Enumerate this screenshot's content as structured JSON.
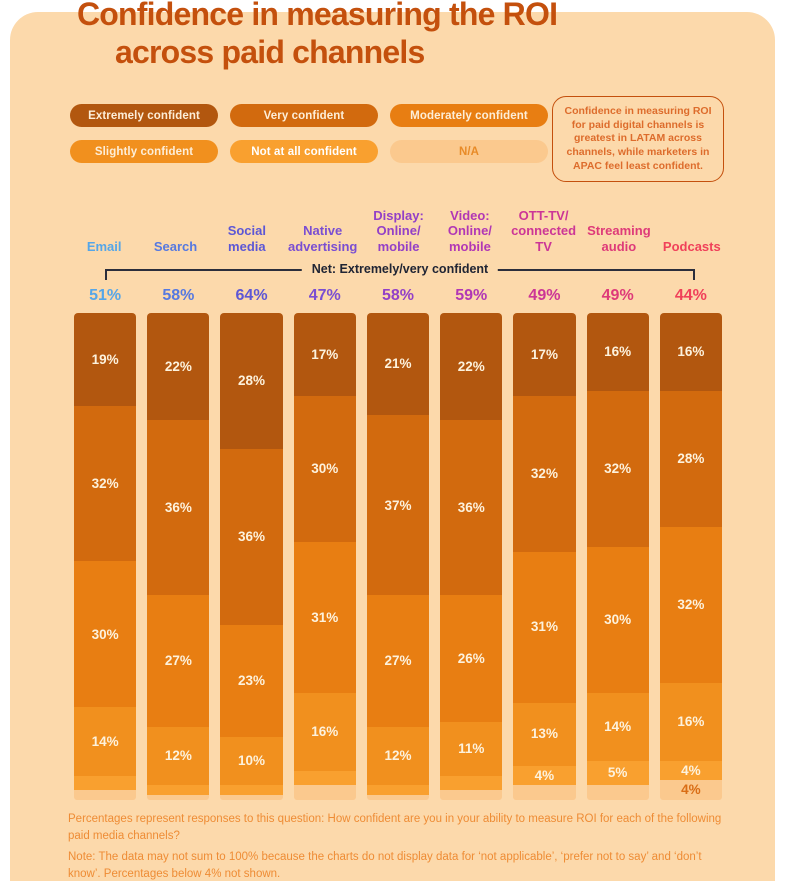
{
  "title": {
    "line1": "Confidence in measuring the ROI",
    "line2": "across paid channels"
  },
  "colors": {
    "page_bg": "#ffffff",
    "panel_bg": "#fcd9ab",
    "title": "#c4500d",
    "bracket": "#2b2e3c",
    "segment_label": "#fdf2dd",
    "footnote": "#ee8c35",
    "callout_border": "#c4500d",
    "callout_text": "#dd6c2c"
  },
  "legend": {
    "items": [
      {
        "label": "Extremely confident",
        "bg": "#b2570f",
        "fg": "#fdeed8"
      },
      {
        "label": "Very confident",
        "bg": "#d26a0e",
        "fg": "#fdeed8"
      },
      {
        "label": "Moderately confident",
        "bg": "#e87e12",
        "fg": "#fdeed8"
      },
      {
        "label": "Slightly confident",
        "bg": "#f1901e",
        "fg": "#fdeed8"
      },
      {
        "label": "Not at all confident",
        "bg": "#f9a02f",
        "fg": "#ffffff"
      },
      {
        "label": "N/A",
        "bg": "#fbc98e",
        "fg": "#e88b28"
      }
    ]
  },
  "callout": {
    "parts": [
      {
        "text": "Confidence in measuring ROI for paid digital channels is ",
        "bold": false
      },
      {
        "text": "greatest in LATAM",
        "bold": true
      },
      {
        "text": " across channels, while marketers in ",
        "bold": false
      },
      {
        "text": "APAC feel least confident.",
        "bold": true
      }
    ]
  },
  "net_label": "Net: Extremely/very confident",
  "chart_data": {
    "type": "bar",
    "stacked": true,
    "unit": "%",
    "ylim": [
      0,
      100
    ],
    "legend_position": "top",
    "series_names": [
      "Extremely confident",
      "Very confident",
      "Moderately confident",
      "Slightly confident",
      "Not at all confident",
      "N/A"
    ],
    "series_colors": [
      "#b2570f",
      "#d26a0e",
      "#e87e12",
      "#f1901e",
      "#f9a02f",
      "#fbc98e"
    ],
    "columns": [
      {
        "key": "email",
        "header": "Email",
        "color": "#55a6e8",
        "net": "51%",
        "segments": [
          {
            "value": 19,
            "label": "19%"
          },
          {
            "value": 32,
            "label": "32%"
          },
          {
            "value": 30,
            "label": "30%"
          },
          {
            "value": 14,
            "label": "14%"
          },
          {
            "value": 3,
            "label": ""
          },
          {
            "value": 2,
            "label": ""
          }
        ]
      },
      {
        "key": "search",
        "header": "Search",
        "color": "#5679e0",
        "net": "58%",
        "segments": [
          {
            "value": 22,
            "label": "22%"
          },
          {
            "value": 36,
            "label": "36%"
          },
          {
            "value": 27,
            "label": "27%"
          },
          {
            "value": 12,
            "label": "12%"
          },
          {
            "value": 2,
            "label": ""
          },
          {
            "value": 1,
            "label": ""
          }
        ]
      },
      {
        "key": "social-media",
        "header": "Social\nmedia",
        "color": "#5d57d5",
        "net": "64%",
        "segments": [
          {
            "value": 28,
            "label": "28%"
          },
          {
            "value": 36,
            "label": "36%"
          },
          {
            "value": 23,
            "label": "23%"
          },
          {
            "value": 10,
            "label": "10%"
          },
          {
            "value": 2,
            "label": ""
          },
          {
            "value": 1,
            "label": ""
          }
        ]
      },
      {
        "key": "native-advertising",
        "header": "Native\nadvertising",
        "color": "#7a4ed2",
        "net": "47%",
        "segments": [
          {
            "value": 17,
            "label": "17%"
          },
          {
            "value": 30,
            "label": "30%"
          },
          {
            "value": 31,
            "label": "31%"
          },
          {
            "value": 16,
            "label": "16%"
          },
          {
            "value": 3,
            "label": ""
          },
          {
            "value": 3,
            "label": ""
          }
        ]
      },
      {
        "key": "display-online-mobile",
        "header": "Display:\nOnline/\nmobile",
        "color": "#9340c7",
        "net": "58%",
        "segments": [
          {
            "value": 21,
            "label": "21%"
          },
          {
            "value": 37,
            "label": "37%"
          },
          {
            "value": 27,
            "label": "27%"
          },
          {
            "value": 12,
            "label": "12%"
          },
          {
            "value": 2,
            "label": ""
          },
          {
            "value": 1,
            "label": ""
          }
        ]
      },
      {
        "key": "video-online-mobile",
        "header": "Video:\nOnline/\nmobile",
        "color": "#b137b5",
        "net": "59%",
        "segments": [
          {
            "value": 22,
            "label": "22%"
          },
          {
            "value": 36,
            "label": "36%"
          },
          {
            "value": 26,
            "label": "26%"
          },
          {
            "value": 11,
            "label": "11%"
          },
          {
            "value": 3,
            "label": ""
          },
          {
            "value": 2,
            "label": ""
          }
        ]
      },
      {
        "key": "ott-tv-connected-tv",
        "header": "OTT-TV/\nconnected\nTV",
        "color": "#cc3696",
        "net": "49%",
        "segments": [
          {
            "value": 17,
            "label": "17%"
          },
          {
            "value": 32,
            "label": "32%"
          },
          {
            "value": 31,
            "label": "31%"
          },
          {
            "value": 13,
            "label": "13%"
          },
          {
            "value": 4,
            "label": "4%"
          },
          {
            "value": 3,
            "label": ""
          }
        ]
      },
      {
        "key": "streaming-audio",
        "header": "Streaming\naudio",
        "color": "#de3a79",
        "net": "49%",
        "segments": [
          {
            "value": 16,
            "label": "16%"
          },
          {
            "value": 32,
            "label": "32%"
          },
          {
            "value": 30,
            "label": "30%"
          },
          {
            "value": 14,
            "label": "14%"
          },
          {
            "value": 5,
            "label": "5%"
          },
          {
            "value": 3,
            "label": ""
          }
        ]
      },
      {
        "key": "podcasts",
        "header": "Podcasts",
        "color": "#f0415a",
        "net": "44%",
        "segments": [
          {
            "value": 16,
            "label": "16%"
          },
          {
            "value": 28,
            "label": "28%"
          },
          {
            "value": 32,
            "label": "32%"
          },
          {
            "value": 16,
            "label": "16%"
          },
          {
            "value": 4,
            "label": "4%"
          },
          {
            "value": 4,
            "label": "4%",
            "label_color": "#d96d15"
          }
        ]
      }
    ]
  },
  "footnote": {
    "line1": "Percentages represent responses to this question: How confident are you in your ability to measure ROI for each of the following paid media channels?",
    "line2": "Note: The data may not sum to 100% because the charts do not display data for ‘not applicable’, ‘prefer not to say’ and ‘don’t know’. Percentages below 4% not shown."
  }
}
